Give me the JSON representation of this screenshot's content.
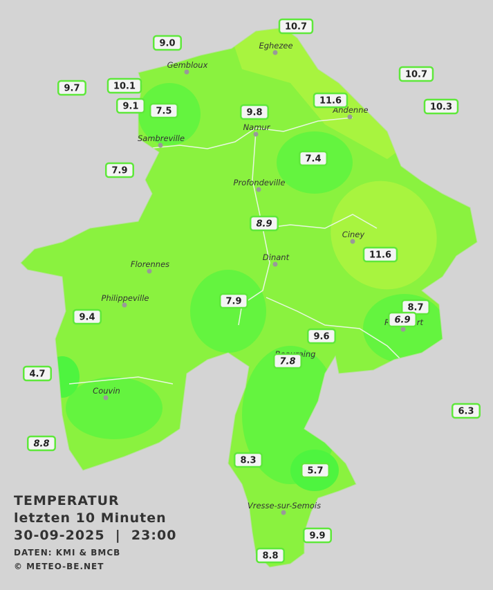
{
  "legend": {
    "title": "TEMPERATUR",
    "subtitle": "letzten 10 Minuten",
    "datetime": "30-09-2025  |  23:00",
    "source": "DATEN: KMI & BMCB",
    "copyright": "© METEO-BE.NET"
  },
  "places": [
    "Eghezee",
    "Gembloux",
    "Andenne",
    "Namur",
    "Sambreville",
    "Profondeville",
    "Ciney",
    "Dinant",
    "Florennes",
    "Philippeville",
    "Couvin",
    "Vresse-sur-Semois",
    "Rochefort",
    "Beauraing"
  ],
  "stations": [
    "10.7",
    "9.0",
    "9.7",
    "10.1",
    "10.7",
    "9.1",
    "7.5",
    "9.8",
    "11.6",
    "10.3",
    "7.4",
    "7.9",
    "8.9",
    "11.6",
    "7.9",
    "8.7",
    "6.9",
    "9.4",
    "9.6",
    "7.8",
    "4.7",
    "6.3",
    "8.8",
    "8.3",
    "5.7",
    "9.9",
    "8.8"
  ]
}
